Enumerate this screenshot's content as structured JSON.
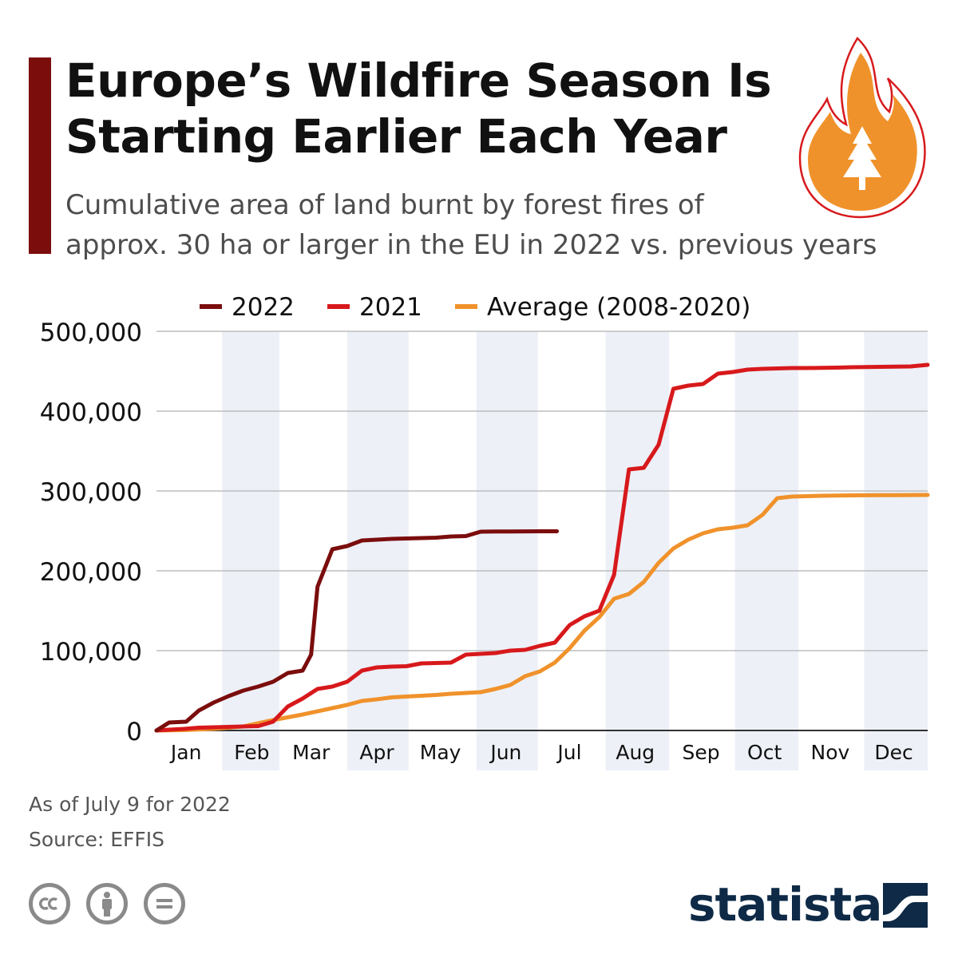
{
  "header": {
    "title_line1": "Europe’s Wildfire Season Is",
    "title_line2": "Starting Earlier Each Year",
    "subtitle_line1": "Cumulative area of land burnt by forest fires of",
    "subtitle_line2": "approx. 30 ha or larger in the EU in 2022 vs. previous years"
  },
  "colors": {
    "accent": "#7b0d0d",
    "series_2022": "#7b0d0d",
    "series_2021": "#d7191c",
    "series_average": "#f0922b",
    "month_band": "#edf0f7",
    "grid": "#bdbdbd",
    "brand": "#0e2a47"
  },
  "icons": {
    "header_graphic": "flame-with-tree-icon",
    "license": [
      "creative-commons-icon",
      "attribution-icon",
      "no-derivatives-icon"
    ],
    "brand_mark": "statista-logo-icon"
  },
  "chart_data": {
    "type": "line",
    "title": "Europe’s Wildfire Season Is Starting Earlier Each Year",
    "subtitle": "Cumulative area of land burnt by forest fires of approx. 30 ha or larger in the EU in 2022 vs. previous years",
    "xlabel": "",
    "ylabel": "",
    "x_unit": "day of year",
    "xlim": [
      1,
      365
    ],
    "ylim": [
      0,
      500000
    ],
    "yticks": [
      0,
      100000,
      200000,
      300000,
      400000,
      500000
    ],
    "ytick_labels": [
      "0",
      "100,000",
      "200,000",
      "300,000",
      "400,000",
      "500,000"
    ],
    "month_labels": [
      "Jan",
      "Feb",
      "Mar",
      "Apr",
      "May",
      "Jun",
      "Jul",
      "Aug",
      "Sep",
      "Oct",
      "Nov",
      "Dec"
    ],
    "month_label_days": [
      15,
      46,
      74,
      105,
      135,
      166,
      196,
      227,
      258,
      288,
      319,
      349
    ],
    "shaded_month_ranges": [
      [
        32,
        59
      ],
      [
        91,
        120
      ],
      [
        152,
        181
      ],
      [
        213,
        243
      ],
      [
        274,
        304
      ],
      [
        335,
        365
      ]
    ],
    "grid": true,
    "legend_position": "top",
    "series": [
      {
        "name": "2022",
        "x": [
          1,
          7,
          15,
          21,
          28,
          35,
          42,
          49,
          56,
          63,
          70,
          74,
          77,
          84,
          91,
          98,
          105,
          112,
          119,
          126,
          133,
          140,
          147,
          154,
          161,
          168,
          175,
          182,
          190
        ],
        "y": [
          0,
          10000,
          11000,
          25000,
          35000,
          43000,
          50000,
          55000,
          61000,
          72000,
          75000,
          95000,
          180000,
          227000,
          231000,
          238000,
          239000,
          240000,
          240500,
          241000,
          241500,
          243000,
          243500,
          249000,
          249200,
          249300,
          249400,
          249500,
          249500
        ]
      },
      {
        "name": "2021",
        "x": [
          1,
          7,
          14,
          21,
          28,
          35,
          42,
          49,
          56,
          63,
          70,
          77,
          84,
          91,
          98,
          105,
          112,
          119,
          126,
          133,
          140,
          147,
          154,
          161,
          168,
          175,
          182,
          189,
          196,
          203,
          210,
          217,
          224,
          231,
          238,
          245,
          252,
          259,
          266,
          273,
          280,
          287,
          294,
          301,
          308,
          315,
          322,
          329,
          336,
          343,
          350,
          357,
          365
        ],
        "y": [
          0,
          1000,
          2000,
          3500,
          4000,
          4500,
          5000,
          5500,
          11000,
          30000,
          40000,
          52000,
          55000,
          61000,
          75000,
          79000,
          80000,
          80500,
          84000,
          84500,
          85000,
          95000,
          96000,
          97000,
          100000,
          101000,
          106000,
          110000,
          132000,
          143000,
          150000,
          195000,
          327000,
          329000,
          358000,
          428000,
          432000,
          434000,
          447000,
          449000,
          452000,
          453000,
          453500,
          454000,
          454000,
          454200,
          454500,
          455000,
          455200,
          455500,
          455700,
          456000,
          458000
        ]
      },
      {
        "name": "Average (2008-2020)",
        "x": [
          1,
          14,
          28,
          42,
          56,
          70,
          84,
          91,
          98,
          105,
          112,
          119,
          126,
          133,
          140,
          147,
          154,
          161,
          168,
          175,
          182,
          189,
          196,
          203,
          210,
          217,
          224,
          231,
          238,
          245,
          252,
          259,
          266,
          273,
          280,
          287,
          294,
          301,
          308,
          315,
          322,
          329,
          336,
          343,
          350,
          357,
          365
        ],
        "y": [
          0,
          500,
          2000,
          5000,
          13000,
          20000,
          28000,
          32000,
          37000,
          39000,
          41500,
          42500,
          43500,
          44500,
          46000,
          47000,
          48000,
          52000,
          57000,
          68000,
          74000,
          85000,
          103000,
          125000,
          142000,
          165000,
          171000,
          186000,
          210000,
          228000,
          239000,
          247000,
          252000,
          254000,
          257000,
          270000,
          291000,
          293000,
          293500,
          294000,
          294200,
          294500,
          294600,
          294700,
          294800,
          294900,
          295000
        ]
      }
    ]
  },
  "footer": {
    "note": "As of July 9 for 2022",
    "source": "Source: EFFIS",
    "brand_text": "statista"
  }
}
